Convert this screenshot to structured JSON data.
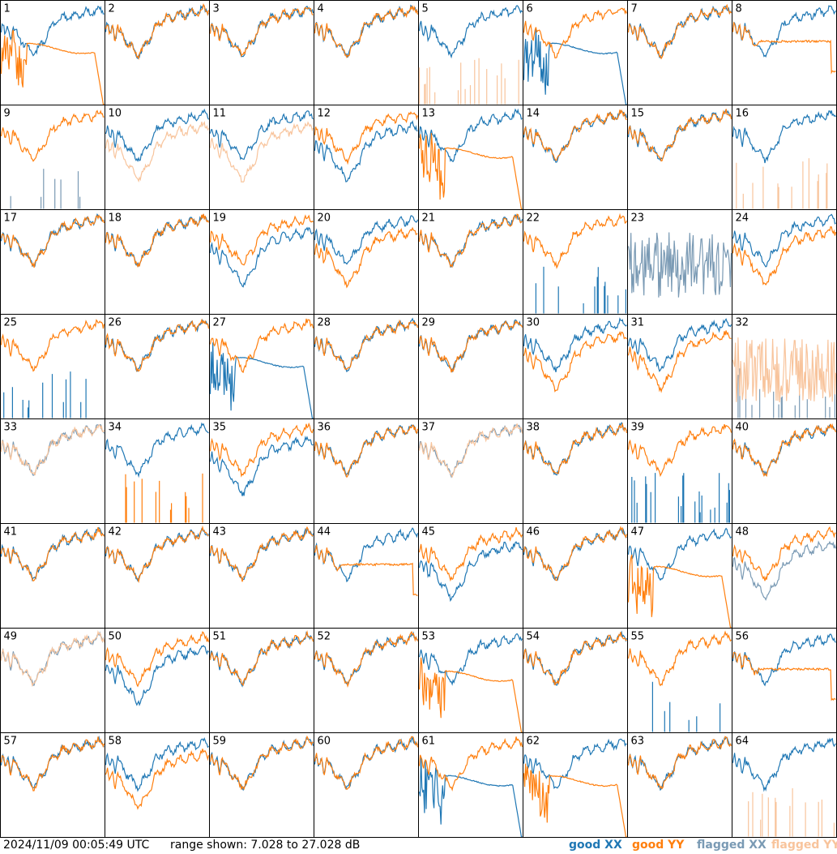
{
  "footer": {
    "timestamp": "2024/11/09 00:05:49 UTC",
    "range_text": "range shown: 7.028 to 27.028 dB",
    "legend": [
      "good XX",
      "good YY",
      "flagged XX",
      "flagged YY"
    ]
  },
  "colors": {
    "good_xx": "#1f77b4",
    "good_yy": "#ff7f0e",
    "flagged_xx": "#7a9ab4",
    "flagged_yy": "#f8c49c",
    "grid": "#000000"
  },
  "chart_data": {
    "type": "line",
    "grid_rows": 8,
    "grid_cols": 8,
    "y_range_db": [
      7.028,
      27.028
    ],
    "panels": [
      {
        "id": "1",
        "xx": "good",
        "yy": "good",
        "xx_shape": "normal",
        "yy_shape": "dropout"
      },
      {
        "id": "2",
        "xx": "good",
        "yy": "good",
        "xx_shape": "normal",
        "yy_shape": "normal"
      },
      {
        "id": "3",
        "xx": "good",
        "yy": "good",
        "xx_shape": "normal",
        "yy_shape": "normal"
      },
      {
        "id": "4",
        "xx": "good",
        "yy": "good",
        "xx_shape": "normal",
        "yy_shape": "normal"
      },
      {
        "id": "5",
        "xx": "good",
        "yy": "flagged",
        "xx_shape": "normal",
        "yy_shape": "spikes"
      },
      {
        "id": "6",
        "xx": "good",
        "yy": "good",
        "xx_shape": "dropout",
        "yy_shape": "normal"
      },
      {
        "id": "7",
        "xx": "good",
        "yy": "good",
        "xx_shape": "normal",
        "yy_shape": "normal"
      },
      {
        "id": "8",
        "xx": "good",
        "yy": "good",
        "xx_shape": "normal",
        "yy_shape": "flat"
      },
      {
        "id": "9",
        "xx": "flagged",
        "yy": "good",
        "xx_shape": "spikes",
        "yy_shape": "normal"
      },
      {
        "id": "10",
        "xx": "good",
        "yy": "flagged",
        "xx_shape": "normal",
        "yy_shape": "low"
      },
      {
        "id": "11",
        "xx": "good",
        "yy": "flagged",
        "xx_shape": "normal",
        "yy_shape": "low"
      },
      {
        "id": "12",
        "xx": "good",
        "yy": "good",
        "xx_shape": "low",
        "yy_shape": "normal"
      },
      {
        "id": "13",
        "xx": "good",
        "yy": "good",
        "xx_shape": "normal",
        "yy_shape": "dropout"
      },
      {
        "id": "14",
        "xx": "good",
        "yy": "good",
        "xx_shape": "normal",
        "yy_shape": "normal"
      },
      {
        "id": "15",
        "xx": "good",
        "yy": "good",
        "xx_shape": "normal",
        "yy_shape": "normal"
      },
      {
        "id": "16",
        "xx": "good",
        "yy": "flagged",
        "xx_shape": "normal",
        "yy_shape": "spikes"
      },
      {
        "id": "17",
        "xx": "good",
        "yy": "good",
        "xx_shape": "normal",
        "yy_shape": "normal"
      },
      {
        "id": "18",
        "xx": "good",
        "yy": "good",
        "xx_shape": "normal",
        "yy_shape": "normal"
      },
      {
        "id": "19",
        "xx": "good",
        "yy": "good",
        "xx_shape": "low",
        "yy_shape": "normal"
      },
      {
        "id": "20",
        "xx": "good",
        "yy": "good",
        "xx_shape": "normal",
        "yy_shape": "low"
      },
      {
        "id": "21",
        "xx": "good",
        "yy": "good",
        "xx_shape": "normal",
        "yy_shape": "normal"
      },
      {
        "id": "22",
        "xx": "good",
        "yy": "good",
        "xx_shape": "spikes",
        "yy_shape": "normal"
      },
      {
        "id": "23",
        "xx": "flagged",
        "yy": "good",
        "xx_shape": "noisy",
        "yy_shape": "none"
      },
      {
        "id": "24",
        "xx": "good",
        "yy": "good",
        "xx_shape": "normal",
        "yy_shape": "low"
      },
      {
        "id": "25",
        "xx": "good",
        "yy": "good",
        "xx_shape": "spikes",
        "yy_shape": "normal"
      },
      {
        "id": "26",
        "xx": "good",
        "yy": "good",
        "xx_shape": "normal",
        "yy_shape": "normal"
      },
      {
        "id": "27",
        "xx": "good",
        "yy": "good",
        "xx_shape": "dropout",
        "yy_shape": "normal"
      },
      {
        "id": "28",
        "xx": "good",
        "yy": "good",
        "xx_shape": "normal",
        "yy_shape": "normal"
      },
      {
        "id": "29",
        "xx": "good",
        "yy": "good",
        "xx_shape": "normal",
        "yy_shape": "normal"
      },
      {
        "id": "30",
        "xx": "good",
        "yy": "good",
        "xx_shape": "normal",
        "yy_shape": "low"
      },
      {
        "id": "31",
        "xx": "good",
        "yy": "good",
        "xx_shape": "normal",
        "yy_shape": "low"
      },
      {
        "id": "32",
        "xx": "flagged",
        "yy": "flagged",
        "xx_shape": "spikes",
        "yy_shape": "noisy"
      },
      {
        "id": "33",
        "xx": "flagged",
        "yy": "flagged",
        "xx_shape": "normal",
        "yy_shape": "normal"
      },
      {
        "id": "34",
        "xx": "good",
        "yy": "good",
        "xx_shape": "normal",
        "yy_shape": "spikes"
      },
      {
        "id": "35",
        "xx": "good",
        "yy": "good",
        "xx_shape": "low",
        "yy_shape": "normal"
      },
      {
        "id": "36",
        "xx": "good",
        "yy": "good",
        "xx_shape": "normal",
        "yy_shape": "normal"
      },
      {
        "id": "37",
        "xx": "flagged",
        "yy": "flagged",
        "xx_shape": "normal",
        "yy_shape": "normal"
      },
      {
        "id": "38",
        "xx": "good",
        "yy": "good",
        "xx_shape": "normal",
        "yy_shape": "normal"
      },
      {
        "id": "39",
        "xx": "good",
        "yy": "good",
        "xx_shape": "spikes",
        "yy_shape": "normal"
      },
      {
        "id": "40",
        "xx": "good",
        "yy": "good",
        "xx_shape": "normal",
        "yy_shape": "normal"
      },
      {
        "id": "41",
        "xx": "good",
        "yy": "good",
        "xx_shape": "normal",
        "yy_shape": "normal"
      },
      {
        "id": "42",
        "xx": "good",
        "yy": "good",
        "xx_shape": "normal",
        "yy_shape": "normal"
      },
      {
        "id": "43",
        "xx": "good",
        "yy": "good",
        "xx_shape": "normal",
        "yy_shape": "normal"
      },
      {
        "id": "44",
        "xx": "good",
        "yy": "good",
        "xx_shape": "normal",
        "yy_shape": "flat"
      },
      {
        "id": "45",
        "xx": "good",
        "yy": "good",
        "xx_shape": "low",
        "yy_shape": "normal"
      },
      {
        "id": "46",
        "xx": "good",
        "yy": "good",
        "xx_shape": "normal",
        "yy_shape": "normal"
      },
      {
        "id": "47",
        "xx": "good",
        "yy": "good",
        "xx_shape": "normal",
        "yy_shape": "dropout"
      },
      {
        "id": "48",
        "xx": "flagged",
        "yy": "good",
        "xx_shape": "low",
        "yy_shape": "normal"
      },
      {
        "id": "49",
        "xx": "flagged",
        "yy": "flagged",
        "xx_shape": "normal",
        "yy_shape": "normal"
      },
      {
        "id": "50",
        "xx": "good",
        "yy": "good",
        "xx_shape": "low",
        "yy_shape": "normal"
      },
      {
        "id": "51",
        "xx": "good",
        "yy": "good",
        "xx_shape": "normal",
        "yy_shape": "normal"
      },
      {
        "id": "52",
        "xx": "good",
        "yy": "good",
        "xx_shape": "normal",
        "yy_shape": "normal"
      },
      {
        "id": "53",
        "xx": "good",
        "yy": "good",
        "xx_shape": "normal",
        "yy_shape": "dropout"
      },
      {
        "id": "54",
        "xx": "good",
        "yy": "good",
        "xx_shape": "normal",
        "yy_shape": "normal"
      },
      {
        "id": "55",
        "xx": "good",
        "yy": "good",
        "xx_shape": "spikes",
        "yy_shape": "normal"
      },
      {
        "id": "56",
        "xx": "good",
        "yy": "good",
        "xx_shape": "normal",
        "yy_shape": "flat"
      },
      {
        "id": "57",
        "xx": "good",
        "yy": "good",
        "xx_shape": "normal",
        "yy_shape": "normal"
      },
      {
        "id": "58",
        "xx": "good",
        "yy": "good",
        "xx_shape": "normal",
        "yy_shape": "low"
      },
      {
        "id": "59",
        "xx": "good",
        "yy": "good",
        "xx_shape": "normal",
        "yy_shape": "normal"
      },
      {
        "id": "60",
        "xx": "good",
        "yy": "good",
        "xx_shape": "normal",
        "yy_shape": "normal"
      },
      {
        "id": "61",
        "xx": "good",
        "yy": "good",
        "xx_shape": "dropout",
        "yy_shape": "normal"
      },
      {
        "id": "62",
        "xx": "good",
        "yy": "good",
        "xx_shape": "normal",
        "yy_shape": "dropout"
      },
      {
        "id": "63",
        "xx": "good",
        "yy": "good",
        "xx_shape": "normal",
        "yy_shape": "normal"
      },
      {
        "id": "64",
        "xx": "good",
        "yy": "flagged",
        "xx_shape": "normal",
        "yy_shape": "spikes"
      }
    ]
  }
}
